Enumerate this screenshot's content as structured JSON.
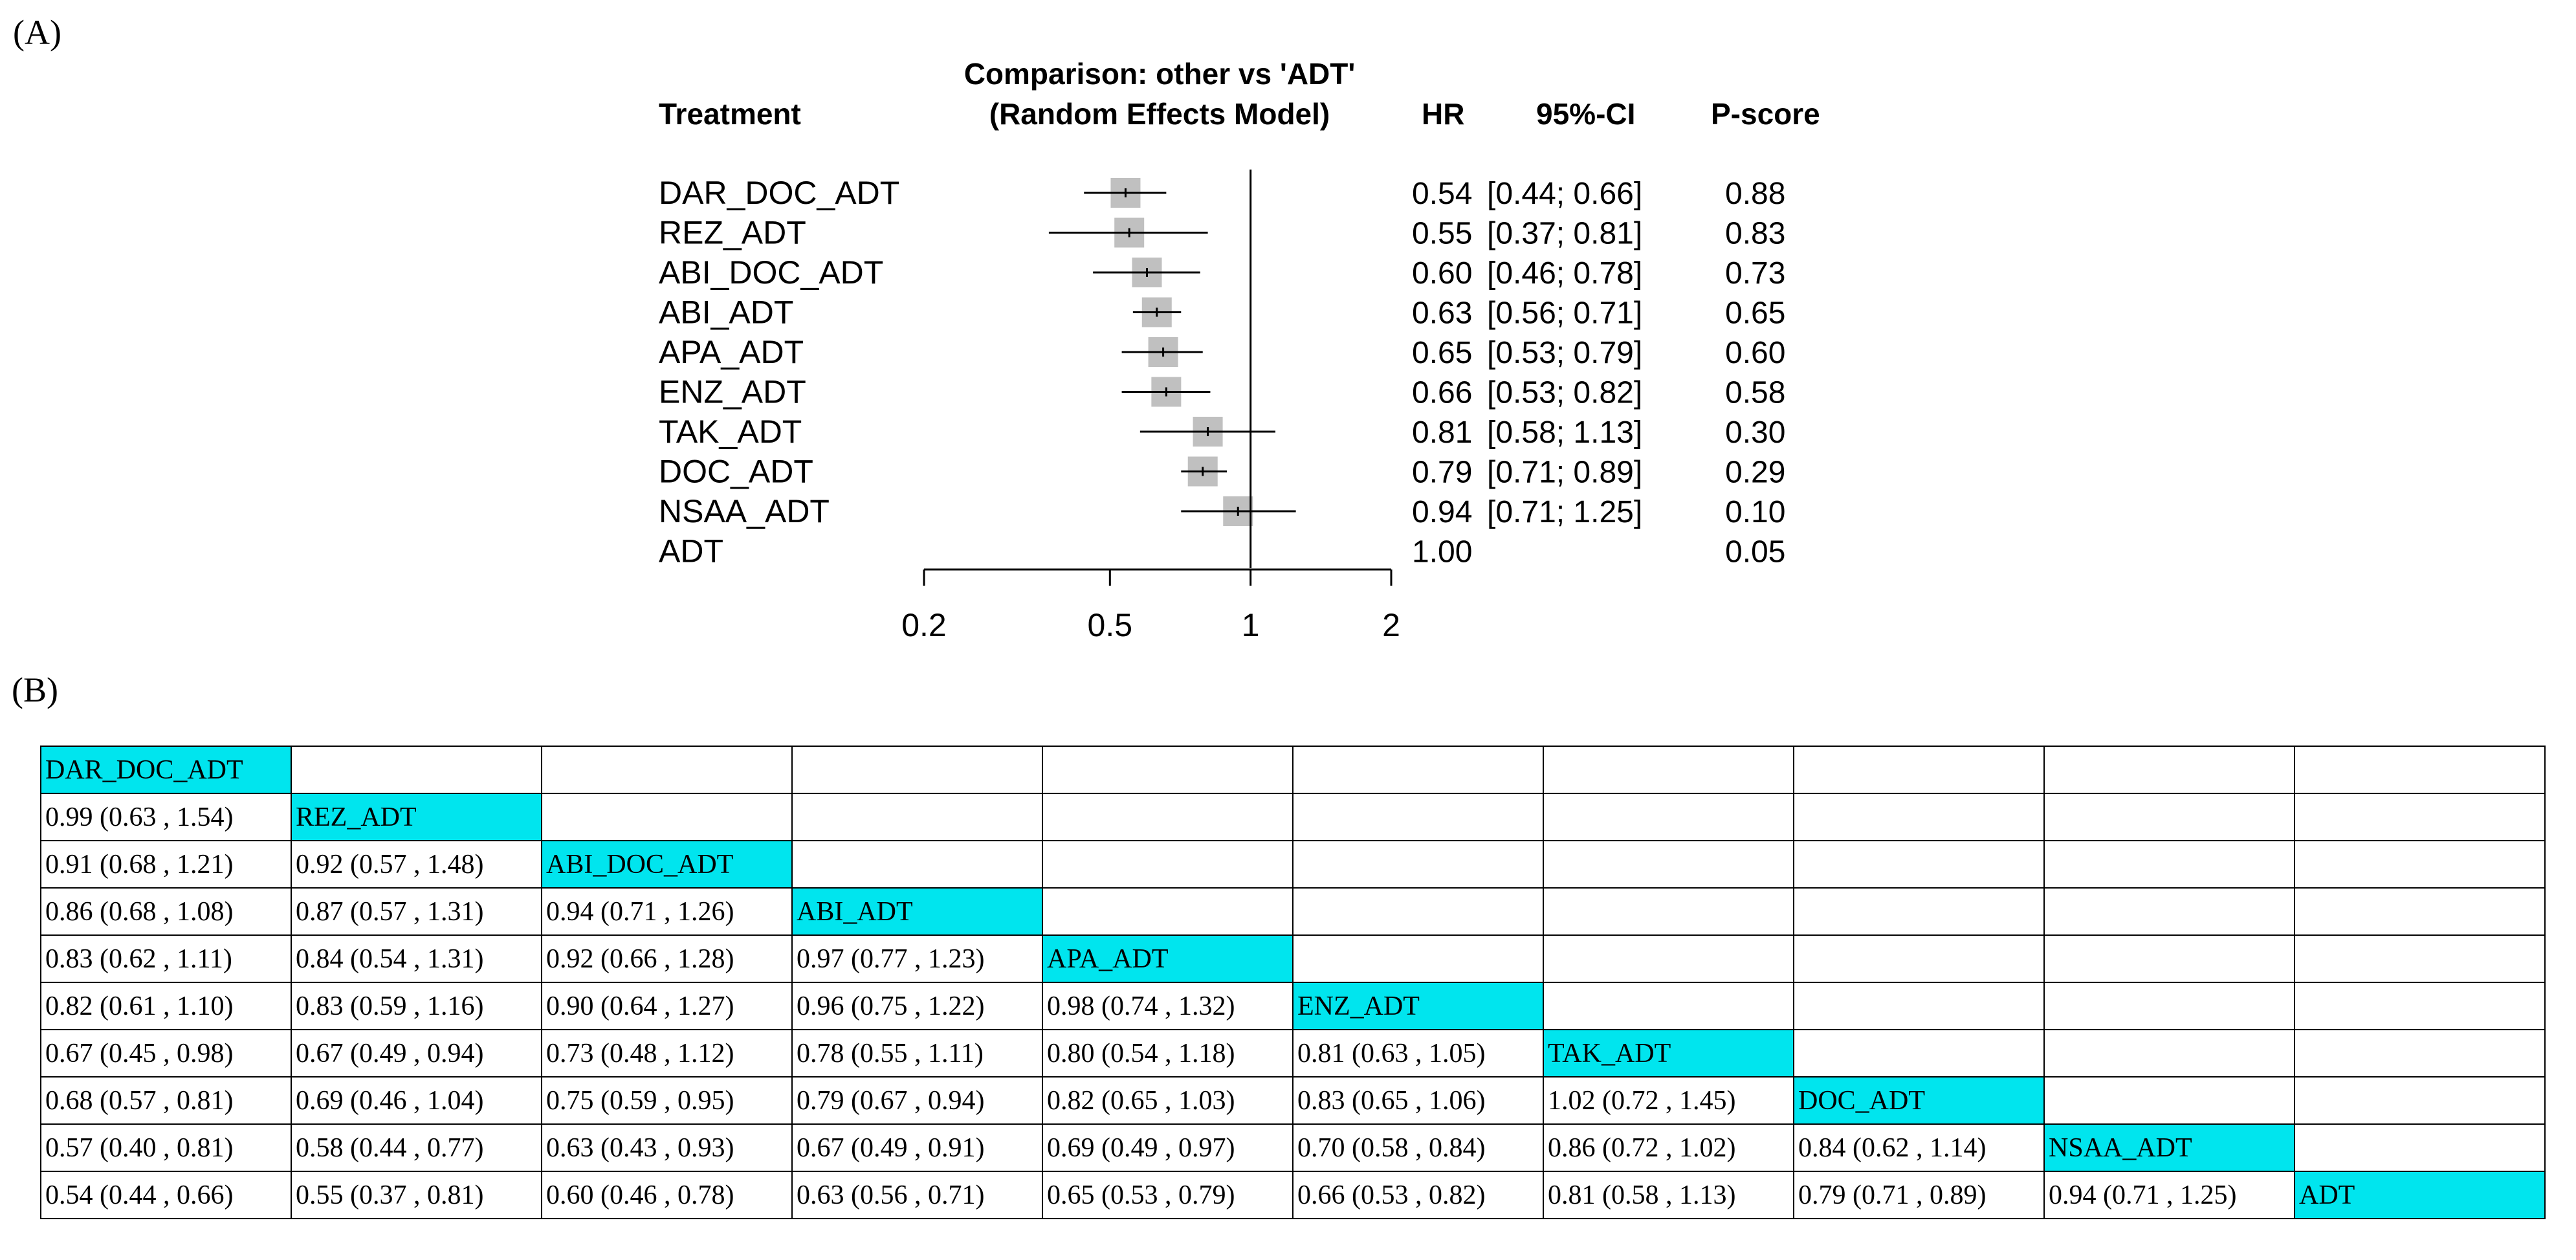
{
  "panel_a_label": "(A)",
  "panel_b_label": "(B)",
  "colors": {
    "diagonal_cell": "#00e5ee",
    "point_marker": "#c0c0c0",
    "lines": "#000000"
  },
  "chart_data": [
    {
      "type": "forest",
      "title_line1": "Comparison: other vs 'ADT'",
      "title_line2": "(Random Effects Model)",
      "columns": {
        "treatment": "Treatment",
        "hr": "HR",
        "ci": "95%-CI",
        "pscore": "P-score"
      },
      "xscale": "log",
      "xlim": [
        0.2,
        2
      ],
      "xticks": [
        0.2,
        0.5,
        1,
        2
      ],
      "xtick_labels": [
        "0.2",
        "0.5",
        "1",
        "2"
      ],
      "reference_line": 1,
      "rows": [
        {
          "treatment": "DAR_DOC_ADT",
          "hr": 0.54,
          "lo": 0.44,
          "hi": 0.66,
          "hr_label": "0.54",
          "ci_label": "[0.44; 0.66]",
          "pscore": "0.88",
          "weight": 1.0
        },
        {
          "treatment": "REZ_ADT",
          "hr": 0.55,
          "lo": 0.37,
          "hi": 0.81,
          "hr_label": "0.55",
          "ci_label": "[0.37; 0.81]",
          "pscore": "0.83",
          "weight": 1.0
        },
        {
          "treatment": "ABI_DOC_ADT",
          "hr": 0.6,
          "lo": 0.46,
          "hi": 0.78,
          "hr_label": "0.60",
          "ci_label": "[0.46; 0.78]",
          "pscore": "0.73",
          "weight": 1.0
        },
        {
          "treatment": "ABI_ADT",
          "hr": 0.63,
          "lo": 0.56,
          "hi": 0.71,
          "hr_label": "0.63",
          "ci_label": "[0.56; 0.71]",
          "pscore": "0.65",
          "weight": 1.0
        },
        {
          "treatment": "APA_ADT",
          "hr": 0.65,
          "lo": 0.53,
          "hi": 0.79,
          "hr_label": "0.65",
          "ci_label": "[0.53; 0.79]",
          "pscore": "0.60",
          "weight": 1.0
        },
        {
          "treatment": "ENZ_ADT",
          "hr": 0.66,
          "lo": 0.53,
          "hi": 0.82,
          "hr_label": "0.66",
          "ci_label": "[0.53; 0.82]",
          "pscore": "0.58",
          "weight": 1.0
        },
        {
          "treatment": "TAK_ADT",
          "hr": 0.81,
          "lo": 0.58,
          "hi": 1.13,
          "hr_label": "0.81",
          "ci_label": "[0.58; 1.13]",
          "pscore": "0.30",
          "weight": 1.0
        },
        {
          "treatment": "DOC_ADT",
          "hr": 0.79,
          "lo": 0.71,
          "hi": 0.89,
          "hr_label": "0.79",
          "ci_label": "[0.71; 0.89]",
          "pscore": "0.29",
          "weight": 1.0
        },
        {
          "treatment": "NSAA_ADT",
          "hr": 0.94,
          "lo": 0.71,
          "hi": 1.25,
          "hr_label": "0.94",
          "ci_label": "[0.71; 1.25]",
          "pscore": "0.10",
          "weight": 1.0
        },
        {
          "treatment": "ADT",
          "hr": 1.0,
          "lo": null,
          "hi": null,
          "hr_label": "1.00",
          "ci_label": "",
          "pscore": "0.05",
          "weight": 0
        }
      ]
    },
    {
      "type": "table",
      "description": "league",
      "rows": [
        [
          "DAR_DOC_ADT",
          "",
          "",
          "",
          "",
          "",
          "",
          "",
          "",
          ""
        ],
        [
          "0.99 (0.63 , 1.54)",
          "REZ_ADT",
          "",
          "",
          "",
          "",
          "",
          "",
          "",
          ""
        ],
        [
          "0.91 (0.68 , 1.21)",
          "0.92 (0.57 , 1.48)",
          "ABI_DOC_ADT",
          "",
          "",
          "",
          "",
          "",
          "",
          ""
        ],
        [
          "0.86 (0.68 , 1.08)",
          "0.87 (0.57 , 1.31)",
          "0.94 (0.71 , 1.26)",
          "ABI_ADT",
          "",
          "",
          "",
          "",
          "",
          ""
        ],
        [
          "0.83 (0.62 , 1.11)",
          "0.84 (0.54 , 1.31)",
          "0.92 (0.66 , 1.28)",
          "0.97 (0.77 , 1.23)",
          "APA_ADT",
          "",
          "",
          "",
          "",
          ""
        ],
        [
          "0.82 (0.61 , 1.10)",
          "0.83 (0.59 , 1.16)",
          "0.90 (0.64 , 1.27)",
          "0.96 (0.75 , 1.22)",
          "0.98 (0.74 , 1.32)",
          "ENZ_ADT",
          "",
          "",
          "",
          ""
        ],
        [
          "0.67 (0.45 , 0.98)",
          "0.67 (0.49 , 0.94)",
          "0.73 (0.48 , 1.12)",
          "0.78 (0.55 , 1.11)",
          "0.80 (0.54 , 1.18)",
          "0.81 (0.63 , 1.05)",
          "TAK_ADT",
          "",
          "",
          ""
        ],
        [
          "0.68 (0.57 , 0.81)",
          "0.69 (0.46 , 1.04)",
          "0.75 (0.59 , 0.95)",
          "0.79 (0.67 , 0.94)",
          "0.82 (0.65 , 1.03)",
          "0.83 (0.65 , 1.06)",
          "1.02 (0.72 , 1.45)",
          "DOC_ADT",
          "",
          ""
        ],
        [
          "0.57 (0.40 , 0.81)",
          "0.58 (0.44 , 0.77)",
          "0.63 (0.43 , 0.93)",
          "0.67 (0.49 , 0.91)",
          "0.69 (0.49 , 0.97)",
          "0.70 (0.58 , 0.84)",
          "0.86 (0.72 , 1.02)",
          "0.84 (0.62 , 1.14)",
          "NSAA_ADT",
          ""
        ],
        [
          "0.54 (0.44 , 0.66)",
          "0.55 (0.37 , 0.81)",
          "0.60 (0.46 , 0.78)",
          "0.63 (0.56 , 0.71)",
          "0.65 (0.53 , 0.79)",
          "0.66 (0.53 , 0.82)",
          "0.81 (0.58 , 1.13)",
          "0.79 (0.71 , 0.89)",
          "0.94 (0.71 , 1.25)",
          "ADT"
        ]
      ]
    }
  ]
}
